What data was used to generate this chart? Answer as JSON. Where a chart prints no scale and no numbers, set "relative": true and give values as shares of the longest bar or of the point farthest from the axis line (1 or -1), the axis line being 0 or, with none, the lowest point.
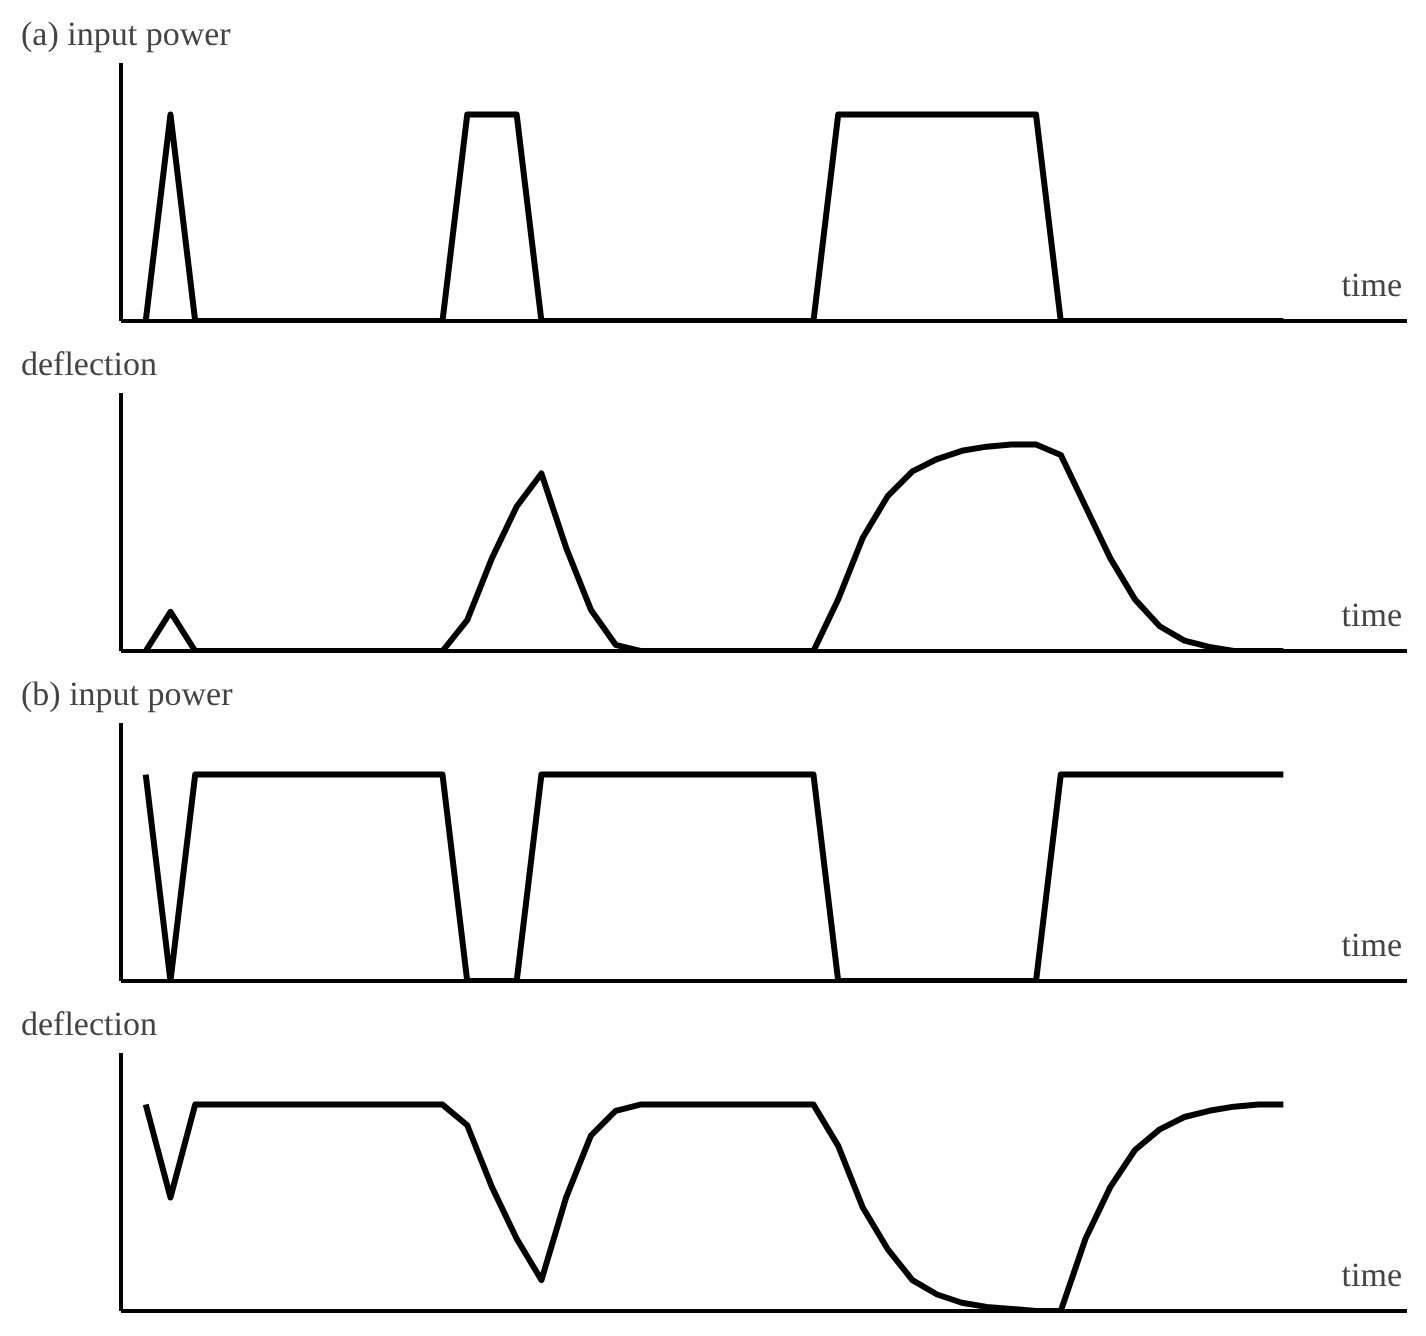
{
  "chart_data": [
    {
      "type": "line",
      "title": "(a) input power",
      "xlabel": "time",
      "relative": true,
      "categories": [
        null,
        null,
        null,
        null,
        null,
        null,
        null,
        null,
        null,
        null,
        null,
        null,
        null,
        null,
        null,
        null,
        null,
        null,
        null,
        null,
        null,
        null,
        null,
        null,
        null,
        null,
        null,
        null,
        null,
        null,
        null,
        null,
        null,
        null,
        null,
        null,
        null,
        null,
        null,
        null,
        null,
        null,
        null,
        null,
        null,
        null,
        null
      ],
      "series": [
        {
          "color": "#000000",
          "values": [
            0,
            1,
            0,
            0,
            0,
            0,
            0,
            0,
            0,
            0,
            0,
            0,
            0,
            1,
            1,
            1,
            0,
            0,
            0,
            0,
            0,
            0,
            0,
            0,
            0,
            0,
            0,
            0,
            1,
            1,
            1,
            1,
            1,
            1,
            1,
            1,
            1,
            0,
            0,
            0,
            0,
            0,
            0,
            0,
            0,
            0,
            0
          ]
        }
      ]
    },
    {
      "type": "line",
      "title": "deflection",
      "xlabel": "time",
      "relative": true,
      "categories": [
        null,
        null,
        null,
        null,
        null,
        null,
        null,
        null,
        null,
        null,
        null,
        null,
        null,
        null,
        null,
        null,
        null,
        null,
        null,
        null,
        null,
        null,
        null,
        null,
        null,
        null,
        null,
        null,
        null,
        null,
        null,
        null,
        null,
        null,
        null,
        null,
        null,
        null,
        null,
        null,
        null,
        null,
        null,
        null,
        null,
        null,
        null
      ],
      "series": [
        {
          "color": "#000000",
          "values": [
            0,
            0.19,
            0,
            0,
            0,
            0,
            0,
            0,
            0,
            0,
            0,
            0,
            0,
            0.15,
            0.45,
            0.7,
            0.86,
            0.5,
            0.2,
            0.03,
            0,
            0,
            0,
            0,
            0,
            0,
            0,
            0,
            0.25,
            0.55,
            0.75,
            0.87,
            0.93,
            0.97,
            0.99,
            1,
            1,
            0.95,
            0.7,
            0.45,
            0.25,
            0.12,
            0.05,
            0.02,
            0,
            0,
            0
          ]
        }
      ]
    },
    {
      "type": "line",
      "title": "(b) input power",
      "xlabel": "time",
      "relative": true,
      "categories": [
        null,
        null,
        null,
        null,
        null,
        null,
        null,
        null,
        null,
        null,
        null,
        null,
        null,
        null,
        null,
        null,
        null,
        null,
        null,
        null,
        null,
        null,
        null,
        null,
        null,
        null,
        null,
        null,
        null,
        null,
        null,
        null,
        null,
        null,
        null,
        null,
        null,
        null,
        null,
        null,
        null,
        null,
        null,
        null,
        null,
        null,
        null
      ],
      "series": [
        {
          "color": "#000000",
          "values": [
            1,
            0,
            1,
            1,
            1,
            1,
            1,
            1,
            1,
            1,
            1,
            1,
            1,
            0,
            0,
            0,
            1,
            1,
            1,
            1,
            1,
            1,
            1,
            1,
            1,
            1,
            1,
            1,
            0,
            0,
            0,
            0,
            0,
            0,
            0,
            0,
            0,
            1,
            1,
            1,
            1,
            1,
            1,
            1,
            1,
            1,
            1
          ]
        }
      ]
    },
    {
      "type": "line",
      "title": "deflection",
      "xlabel": "time",
      "relative": true,
      "categories": [
        null,
        null,
        null,
        null,
        null,
        null,
        null,
        null,
        null,
        null,
        null,
        null,
        null,
        null,
        null,
        null,
        null,
        null,
        null,
        null,
        null,
        null,
        null,
        null,
        null,
        null,
        null,
        null,
        null,
        null,
        null,
        null,
        null,
        null,
        null,
        null,
        null,
        null,
        null,
        null,
        null,
        null,
        null,
        null,
        null,
        null,
        null
      ],
      "series": [
        {
          "color": "#000000",
          "values": [
            1,
            0.55,
            1,
            1,
            1,
            1,
            1,
            1,
            1,
            1,
            1,
            1,
            1,
            0.9,
            0.6,
            0.35,
            0.15,
            0.55,
            0.85,
            0.97,
            1,
            1,
            1,
            1,
            1,
            1,
            1,
            1,
            0.8,
            0.5,
            0.3,
            0.15,
            0.08,
            0.04,
            0.02,
            0.01,
            0,
            0,
            0.35,
            0.6,
            0.78,
            0.88,
            0.94,
            0.97,
            0.99,
            1,
            1
          ]
        }
      ]
    }
  ]
}
